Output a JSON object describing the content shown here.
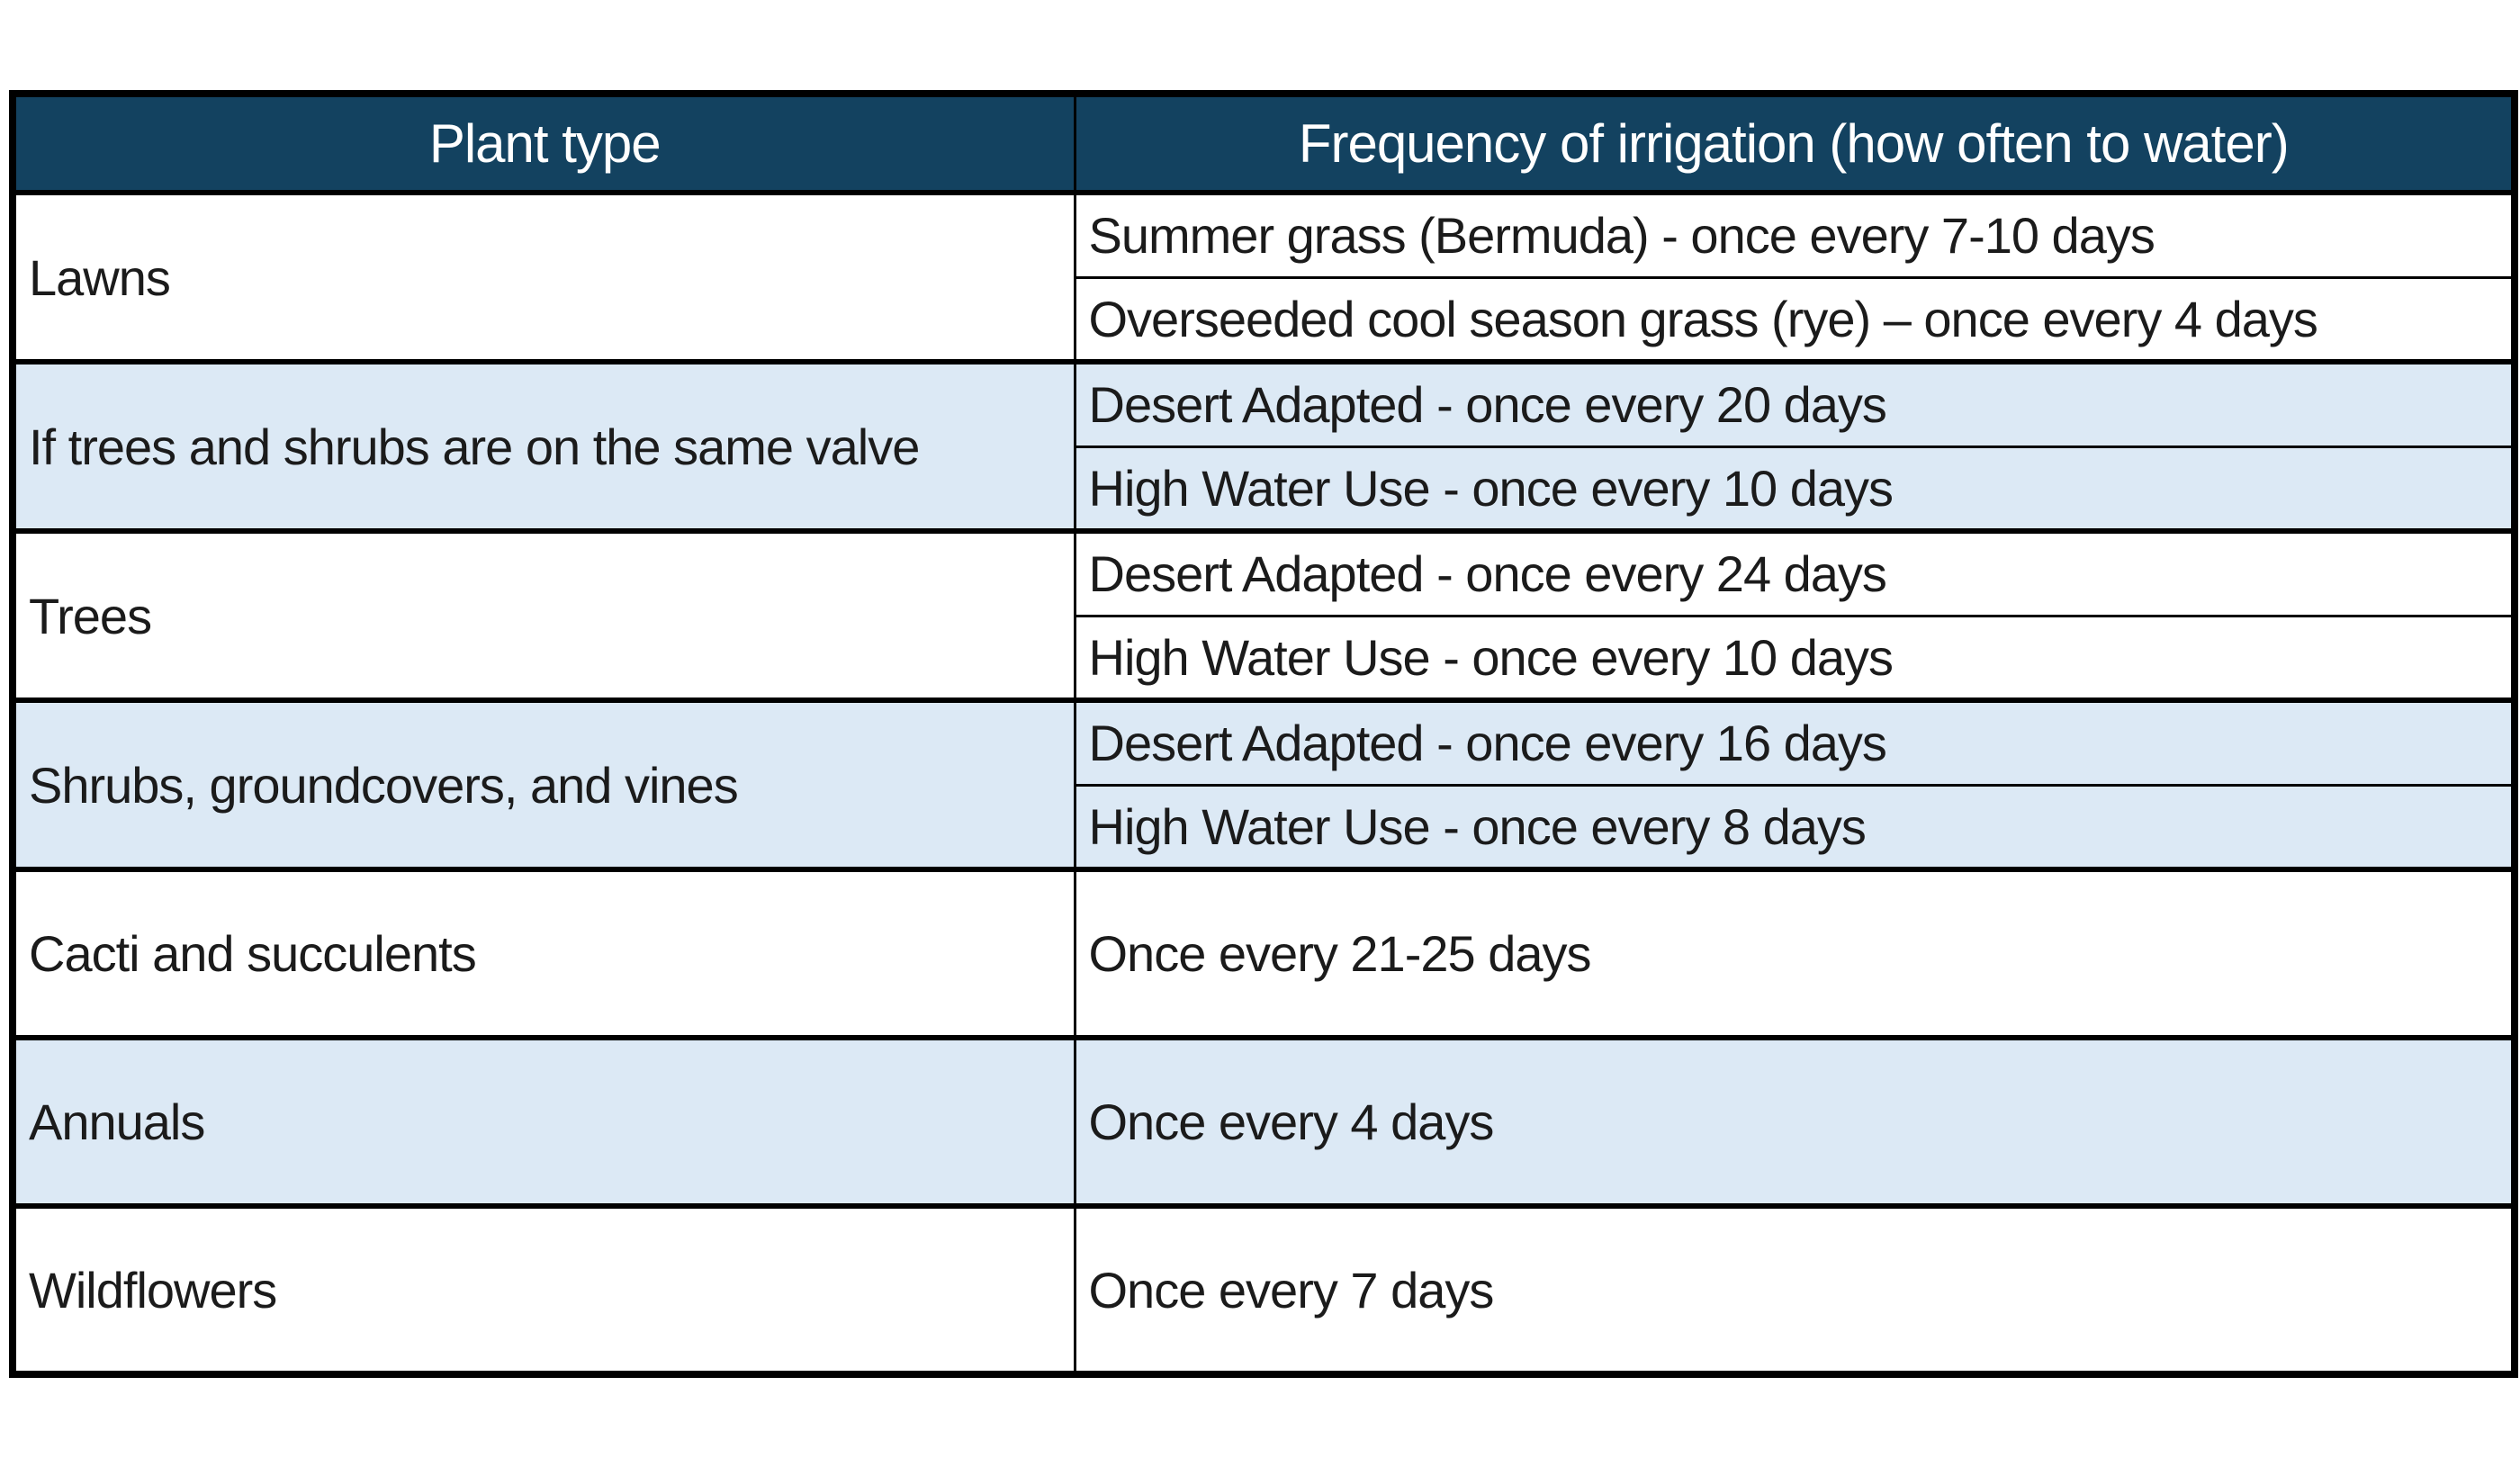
{
  "table": {
    "columns": [
      "Plant type",
      "Frequency of irrigation (how often to water)"
    ],
    "groups": [
      {
        "plant": "Lawns",
        "shaded": false,
        "rows": [
          "Summer grass (Bermuda) - once every 7-10 days",
          "Overseeded cool season grass (rye) – once every 4 days"
        ]
      },
      {
        "plant": "If trees and shrubs are on the same valve",
        "shaded": true,
        "rows": [
          "Desert Adapted - once every 20 days",
          "High Water Use - once every 10 days"
        ]
      },
      {
        "plant": "Trees",
        "shaded": false,
        "rows": [
          "Desert Adapted - once every 24 days",
          "High Water Use - once every 10 days"
        ]
      },
      {
        "plant": "Shrubs, groundcovers, and vines",
        "shaded": true,
        "rows": [
          "Desert Adapted - once every 16 days",
          "High Water Use - once every 8 days"
        ]
      },
      {
        "plant": "Cacti and succulents",
        "shaded": false,
        "rows": [
          "Once every 21-25 days"
        ]
      },
      {
        "plant": "Annuals",
        "shaded": true,
        "rows": [
          "Once every 4 days"
        ]
      },
      {
        "plant": "Wildflowers",
        "shaded": false,
        "rows": [
          "Once every 7 days"
        ]
      }
    ],
    "colors": {
      "header_bg": "#134260",
      "header_text": "#ffffff",
      "shaded_row_bg": "#dce9f5",
      "border": "#000000",
      "body_text": "#1b1b1b"
    }
  }
}
